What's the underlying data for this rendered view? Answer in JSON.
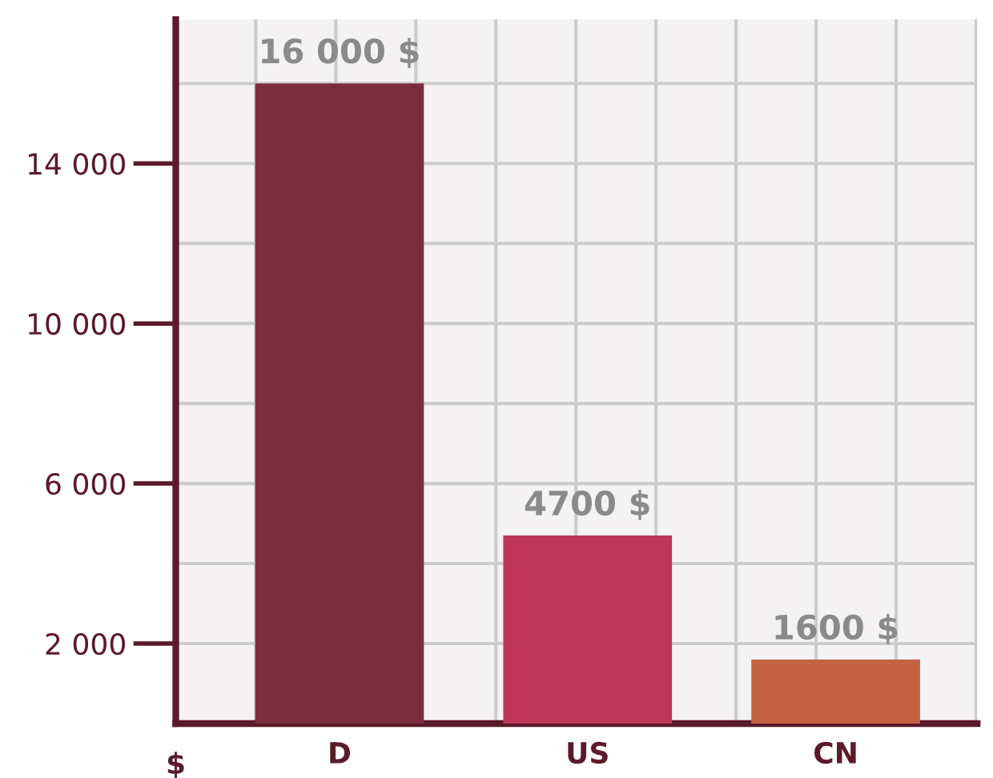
{
  "chart_data": {
    "type": "bar",
    "annotations": [
      "$"
    ],
    "categories": [
      "D",
      "US",
      "CN"
    ],
    "values": [
      16000,
      4700,
      1600
    ],
    "colors": [
      "#7b2d40",
      "#c0365a",
      "#c46245"
    ],
    "value_labels": [
      "16 000 $",
      "4700 $",
      "1600 $"
    ],
    "ylim": [
      0,
      17600
    ],
    "yticks": [
      {
        "value": 2000,
        "label": "2 000"
      },
      {
        "value": 4000,
        "label": null
      },
      {
        "value": 6000,
        "label": "6 000"
      },
      {
        "value": 8000,
        "label": null
      },
      {
        "value": 10000,
        "label": "10 000"
      },
      {
        "value": 12000,
        "label": null
      },
      {
        "value": 14000,
        "label": "14 000"
      },
      {
        "value": 16000,
        "label": null
      }
    ],
    "grid": true
  }
}
